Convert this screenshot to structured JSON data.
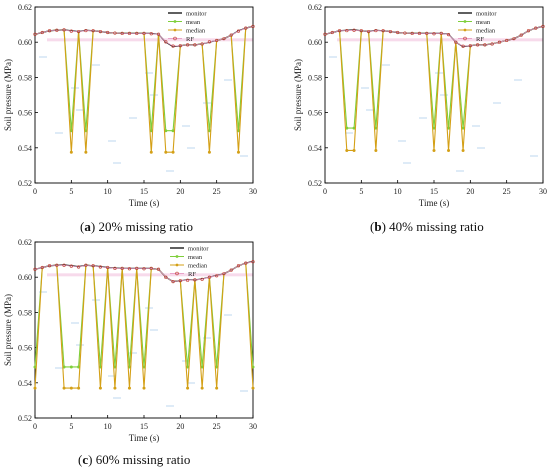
{
  "panels": [
    {
      "letter": "a",
      "caption_text": " 20% missing ratio"
    },
    {
      "letter": "b",
      "caption_text": " 40% missing ratio"
    },
    {
      "letter": "c",
      "caption_text": " 60% missing ratio"
    }
  ],
  "colors": {
    "monitor": "#1a1a1a",
    "mean": "#7fcf3a",
    "median": "#d4a017",
    "rf": "#e9a3c9",
    "pink_band": "#f0b5d8",
    "blue_dash": "#6fa8dc"
  },
  "chart_data": [
    {
      "type": "line",
      "xlabel": "Time (s)",
      "ylabel": "Soil pressure (MPa)",
      "xlim": [
        0,
        30
      ],
      "ylim": [
        0.52,
        0.62
      ],
      "xticks": [
        "0",
        "5",
        "10",
        "15",
        "20",
        "25",
        "30"
      ],
      "yticks": [
        "0.52",
        "0.54",
        "0.56",
        "0.58",
        "0.60",
        "0.62"
      ],
      "legend": [
        "monitor",
        "mean",
        "median",
        "RF"
      ],
      "legend_position": "top-right",
      "x": [
        0,
        1,
        2,
        3,
        4,
        5,
        6,
        7,
        8,
        9,
        10,
        11,
        12,
        13,
        14,
        15,
        16,
        17,
        18,
        19,
        20,
        21,
        22,
        23,
        24,
        25,
        26,
        27,
        28,
        29,
        30
      ],
      "series": [
        {
          "name": "monitor",
          "values": [
            0.6045,
            0.6055,
            0.6065,
            0.6068,
            0.607,
            0.6065,
            0.606,
            0.6068,
            0.6065,
            0.606,
            0.6055,
            0.6052,
            0.605,
            0.605,
            0.605,
            0.605,
            0.605,
            0.6045,
            0.6,
            0.5975,
            0.598,
            0.5985,
            0.5985,
            0.599,
            0.6,
            0.601,
            0.602,
            0.604,
            0.6065,
            0.608,
            0.609
          ]
        },
        {
          "name": "mean",
          "missing": [
            5,
            7,
            16,
            18,
            19,
            24,
            28
          ],
          "fill": 0.5497
        },
        {
          "name": "median",
          "missing": [
            5,
            7,
            16,
            18,
            19,
            24,
            28
          ],
          "fill": 0.5375
        },
        {
          "name": "RF",
          "values": [
            0.6045,
            0.6055,
            0.6065,
            0.6068,
            0.607,
            0.6063,
            0.606,
            0.6066,
            0.6065,
            0.606,
            0.6055,
            0.6052,
            0.605,
            0.605,
            0.605,
            0.605,
            0.6048,
            0.6045,
            0.6002,
            0.5978,
            0.598,
            0.5985,
            0.5985,
            0.599,
            0.6002,
            0.601,
            0.602,
            0.604,
            0.6063,
            0.608,
            0.609
          ]
        }
      ]
    },
    {
      "type": "line",
      "xlabel": "Time (s)",
      "ylabel": "Soil pressure (MPa)",
      "xlim": [
        0,
        30
      ],
      "ylim": [
        0.52,
        0.62
      ],
      "xticks": [
        "0",
        "5",
        "10",
        "15",
        "20",
        "25",
        "30"
      ],
      "yticks": [
        "0.52",
        "0.54",
        "0.56",
        "0.58",
        "0.60",
        "0.62"
      ],
      "legend": [
        "monitor",
        "mean",
        "median",
        "RF"
      ],
      "legend_position": "top-right",
      "x": [
        0,
        1,
        2,
        3,
        4,
        5,
        6,
        7,
        8,
        9,
        10,
        11,
        12,
        13,
        14,
        15,
        16,
        17,
        18,
        19,
        20,
        21,
        22,
        23,
        24,
        25,
        26,
        27,
        28,
        29,
        30
      ],
      "series": [
        {
          "name": "monitor",
          "values": [
            0.6045,
            0.6055,
            0.6065,
            0.6068,
            0.607,
            0.6065,
            0.606,
            0.6068,
            0.6065,
            0.606,
            0.6055,
            0.6052,
            0.605,
            0.605,
            0.605,
            0.605,
            0.605,
            0.6045,
            0.6,
            0.5975,
            0.598,
            0.5985,
            0.5985,
            0.599,
            0.6,
            0.601,
            0.602,
            0.604,
            0.6065,
            0.608,
            0.609
          ]
        },
        {
          "name": "mean",
          "missing": [
            3,
            4,
            7,
            15,
            17,
            19
          ],
          "fill": 0.5512
        },
        {
          "name": "median",
          "missing": [
            3,
            4,
            7,
            15,
            17,
            19
          ],
          "fill": 0.5385
        },
        {
          "name": "RF",
          "values": [
            0.6045,
            0.6055,
            0.6065,
            0.6066,
            0.6068,
            0.6065,
            0.606,
            0.6066,
            0.6065,
            0.606,
            0.6055,
            0.6052,
            0.605,
            0.605,
            0.605,
            0.6048,
            0.605,
            0.6043,
            0.6,
            0.5977,
            0.598,
            0.5985,
            0.5985,
            0.599,
            0.6,
            0.601,
            0.602,
            0.604,
            0.6065,
            0.608,
            0.609
          ]
        }
      ]
    },
    {
      "type": "line",
      "xlabel": "Time (s)",
      "ylabel": "Soil pressure (MPa)",
      "xlim": [
        0,
        30
      ],
      "ylim": [
        0.52,
        0.62
      ],
      "xticks": [
        "0",
        "5",
        "10",
        "15",
        "20",
        "25",
        "30"
      ],
      "yticks": [
        "0.52",
        "0.54",
        "0.56",
        "0.58",
        "0.60",
        "0.62"
      ],
      "legend": [
        "monitor",
        "mean",
        "median",
        "RF"
      ],
      "legend_position": "top-left",
      "x": [
        0,
        1,
        2,
        3,
        4,
        5,
        6,
        7,
        8,
        9,
        10,
        11,
        12,
        13,
        14,
        15,
        16,
        17,
        18,
        19,
        20,
        21,
        22,
        23,
        24,
        25,
        26,
        27,
        28,
        29,
        30
      ],
      "series": [
        {
          "name": "monitor",
          "values": [
            0.6045,
            0.6055,
            0.6065,
            0.6068,
            0.607,
            0.6065,
            0.606,
            0.6068,
            0.6065,
            0.606,
            0.6055,
            0.6052,
            0.605,
            0.605,
            0.605,
            0.605,
            0.605,
            0.6045,
            0.6,
            0.5975,
            0.598,
            0.5985,
            0.5985,
            0.599,
            0.6,
            0.601,
            0.602,
            0.604,
            0.6065,
            0.608,
            0.609
          ]
        },
        {
          "name": "mean",
          "missing": [
            0,
            4,
            5,
            6,
            9,
            11,
            13,
            15,
            21,
            23,
            25,
            30
          ],
          "fill": 0.549
        },
        {
          "name": "median",
          "missing": [
            0,
            4,
            5,
            6,
            9,
            11,
            13,
            15,
            21,
            23,
            25,
            30
          ],
          "fill": 0.537
        },
        {
          "name": "RF",
          "values": [
            0.6045,
            0.6055,
            0.6065,
            0.6068,
            0.6068,
            0.6063,
            0.6058,
            0.6068,
            0.6065,
            0.6058,
            0.6055,
            0.605,
            0.605,
            0.6048,
            0.605,
            0.6048,
            0.605,
            0.6045,
            0.6,
            0.5975,
            0.598,
            0.5983,
            0.5985,
            0.5988,
            0.6,
            0.6008,
            0.602,
            0.604,
            0.6065,
            0.608,
            0.6088
          ]
        }
      ]
    }
  ]
}
